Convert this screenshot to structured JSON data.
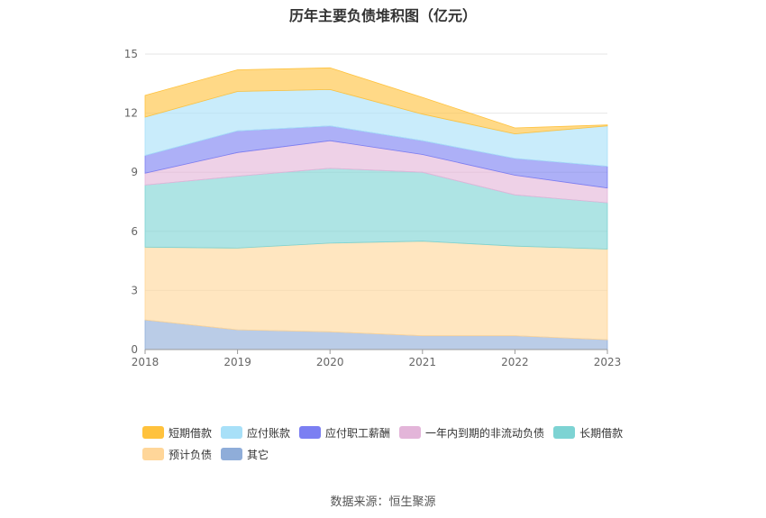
{
  "chart_data": {
    "type": "area",
    "title": "历年主要负债堆积图（亿元）",
    "x": [
      "2018",
      "2019",
      "2020",
      "2021",
      "2022",
      "2023"
    ],
    "yticks": [
      "0",
      "3",
      "6",
      "9",
      "12",
      "15"
    ],
    "ylim": [
      0,
      15
    ],
    "grid": true,
    "legend_position": "bottom",
    "stacked": true,
    "series": [
      {
        "name": "其它",
        "color": "#8FADD9",
        "values": [
          1.5,
          1.0,
          0.9,
          0.7,
          0.7,
          0.5
        ]
      },
      {
        "name": "预计负债",
        "color": "#FFD699",
        "values": [
          3.7,
          4.15,
          4.5,
          4.8,
          4.55,
          4.6
        ]
      },
      {
        "name": "长期借款",
        "color": "#7DD3D3",
        "values": [
          3.15,
          3.65,
          3.8,
          3.5,
          2.6,
          2.35
        ]
      },
      {
        "name": "一年内到期的非流动负债",
        "color": "#E3B5D9",
        "values": [
          0.6,
          1.2,
          1.4,
          0.9,
          1.0,
          0.75
        ]
      },
      {
        "name": "应付职工薪酬",
        "color": "#7B7FF2",
        "values": [
          0.9,
          1.1,
          0.75,
          0.7,
          0.85,
          1.1
        ]
      },
      {
        "name": "应付账款",
        "color": "#A8E0F8",
        "values": [
          1.95,
          2.0,
          1.85,
          1.35,
          1.25,
          2.05
        ]
      },
      {
        "name": "短期借款",
        "color": "#FFC23D",
        "values": [
          1.1,
          1.1,
          1.1,
          0.85,
          0.3,
          0.05
        ]
      }
    ],
    "legend_order": [
      "短期借款",
      "应付账款",
      "应付职工薪酬",
      "一年内到期的非流动负债",
      "长期借款",
      "预计负债",
      "其它"
    ]
  },
  "footer": {
    "source": "数据来源：恒生聚源"
  }
}
